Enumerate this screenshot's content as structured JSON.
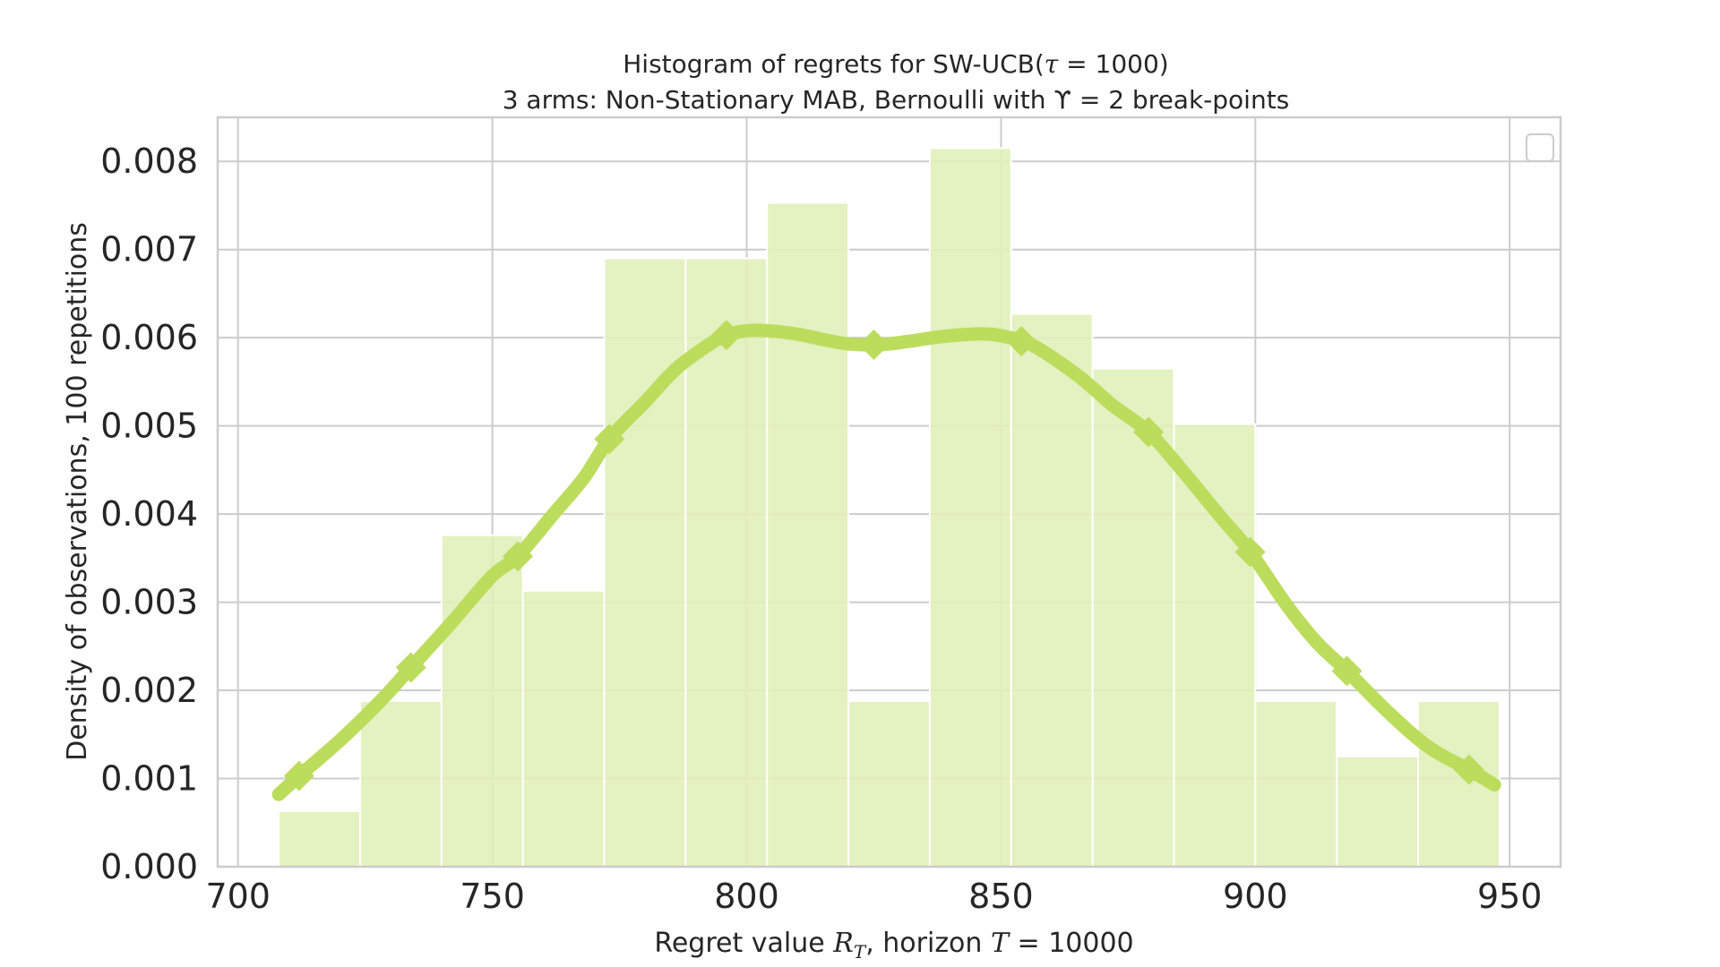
{
  "chart_data": {
    "type": "bar",
    "title_line1": "Histogram of regrets for SW-UCB(τ = 1000)",
    "title_line2": "3 arms: Non-Stationary MAB, Bernoulli with ϒ = 2 break-points",
    "xlabel": "Regret value R_T, horizon T = 10000",
    "ylabel": "Density of observations, 100 repetitions",
    "xlim": [
      696,
      960
    ],
    "ylim": [
      0,
      0.0085
    ],
    "xticks": [
      700,
      750,
      800,
      850,
      900,
      950
    ],
    "yticks": [
      0.0,
      0.001,
      0.002,
      0.003,
      0.004,
      0.005,
      0.006,
      0.007,
      0.008
    ],
    "xtick_labels": [
      "700",
      "750",
      "800",
      "850",
      "900",
      "950"
    ],
    "ytick_labels": [
      "0.000",
      "0.001",
      "0.002",
      "0.003",
      "0.004",
      "0.005",
      "0.006",
      "0.007",
      "0.008"
    ],
    "grid": true,
    "legend": "top-right (empty)",
    "colors": {
      "bar": "#e1efba",
      "kde_line": "#bcdc5c",
      "grid": "#cccccc",
      "text": "#262626"
    },
    "bins": [
      {
        "x0": 708,
        "x1": 724,
        "density": 0.00063
      },
      {
        "x0": 724,
        "x1": 740,
        "density": 0.00188
      },
      {
        "x0": 740,
        "x1": 756,
        "density": 0.00376
      },
      {
        "x0": 756,
        "x1": 772,
        "density": 0.00313
      },
      {
        "x0": 772,
        "x1": 788,
        "density": 0.0069
      },
      {
        "x0": 788,
        "x1": 804,
        "density": 0.0069
      },
      {
        "x0": 804,
        "x1": 820,
        "density": 0.00753
      },
      {
        "x0": 820,
        "x1": 836,
        "density": 0.00188
      },
      {
        "x0": 836,
        "x1": 852,
        "density": 0.00815
      },
      {
        "x0": 852,
        "x1": 868,
        "density": 0.00627
      },
      {
        "x0": 868,
        "x1": 884,
        "density": 0.00565
      },
      {
        "x0": 884,
        "x1": 900,
        "density": 0.00502
      },
      {
        "x0": 900,
        "x1": 916,
        "density": 0.00188
      },
      {
        "x0": 916,
        "x1": 932,
        "density": 0.00125
      },
      {
        "x0": 932,
        "x1": 948,
        "density": 0.00188
      }
    ],
    "kde_curve": {
      "x": [
        708,
        712,
        720,
        728,
        734,
        742,
        750,
        755,
        762,
        768,
        773,
        780,
        786,
        792,
        796,
        800,
        804,
        810,
        815,
        820,
        826,
        832,
        838,
        844,
        848,
        851,
        855,
        860,
        866,
        872,
        879,
        886,
        893,
        899,
        906,
        912,
        918,
        926,
        934,
        942,
        947
      ],
      "y": [
        0.00082,
        0.00103,
        0.00143,
        0.00188,
        0.00226,
        0.00277,
        0.0033,
        0.00352,
        0.004,
        0.00441,
        0.00485,
        0.00527,
        0.00564,
        0.0059,
        0.00603,
        0.00608,
        0.00608,
        0.00604,
        0.00598,
        0.00593,
        0.00592,
        0.00596,
        0.00601,
        0.00604,
        0.00604,
        0.00601,
        0.00595,
        0.00578,
        0.00553,
        0.00523,
        0.00493,
        0.00447,
        0.00398,
        0.00357,
        0.00298,
        0.00255,
        0.00222,
        0.00176,
        0.00136,
        0.0011,
        0.00093
      ]
    },
    "kde_markers": {
      "x": [
        712,
        734,
        755,
        773,
        796,
        825,
        854,
        879,
        899,
        918,
        942
      ],
      "y": [
        0.00103,
        0.00226,
        0.00352,
        0.00485,
        0.00603,
        0.00592,
        0.00596,
        0.00493,
        0.00357,
        0.00222,
        0.0011
      ]
    }
  }
}
